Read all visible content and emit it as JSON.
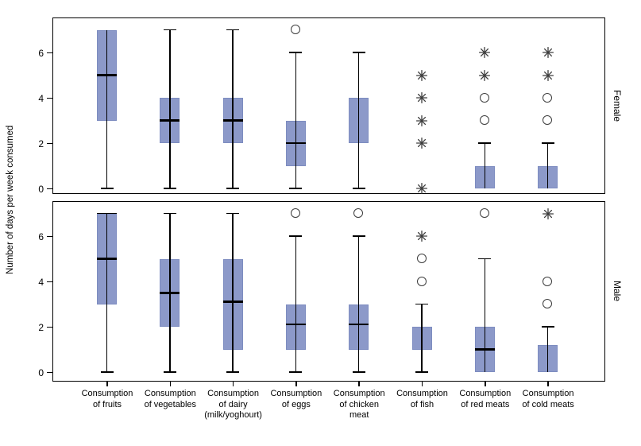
{
  "figure": {
    "ylabel": "Number of days per week consumed",
    "yticks": [
      0,
      2,
      4,
      6
    ],
    "colors": {
      "box_fill": "#8C99C9",
      "box_edge": "#7D8CC0",
      "line": "#000000",
      "outlier": "#3D3D3D"
    },
    "categories_lines": [
      [
        "Consumption",
        "of fruits"
      ],
      [
        "Consumption",
        "of vegetables"
      ],
      [
        "Consumption",
        "of dairy",
        "(milk/yoghourt)"
      ],
      [
        "Consumption",
        "of eggs"
      ],
      [
        "Consumption",
        "of chicken",
        "meat"
      ],
      [
        "Consumption",
        "of fish"
      ],
      [
        "Consumption",
        "of red meats"
      ],
      [
        "Consumption",
        "of cold meats"
      ]
    ]
  },
  "chart_data": {
    "type": "boxplot",
    "title": "",
    "xlabel": "",
    "ylabel": "Number of days per week consumed",
    "ylim": [
      -0.35,
      7.55
    ],
    "yticks": [
      0,
      2,
      4,
      6
    ],
    "grid": false,
    "panel_layout": "two stacked panels sharing x axis, panel label on right side",
    "categories": [
      "Consumption of fruits",
      "Consumption of vegetables",
      "Consumption of dairy (milk/yoghourt)",
      "Consumption of eggs",
      "Consumption of chicken meat",
      "Consumption of fish",
      "Consumption of red meats",
      "Consumption of cold meats"
    ],
    "panels": [
      {
        "name": "Female",
        "boxes": [
          {
            "lo": 0,
            "q1": 3,
            "med": 5,
            "q3": 7,
            "hi": 7,
            "caps": [
              0
            ],
            "circles": [],
            "stars": []
          },
          {
            "lo": 0,
            "q1": 2,
            "med": 3,
            "q3": 4,
            "hi": 7,
            "caps": [
              0,
              7
            ],
            "circles": [],
            "stars": []
          },
          {
            "lo": 0,
            "q1": 2,
            "med": 3,
            "q3": 4,
            "hi": 7,
            "caps": [
              0,
              7
            ],
            "circles": [],
            "stars": []
          },
          {
            "lo": 0,
            "q1": 1,
            "med": 2,
            "q3": 3,
            "hi": 6,
            "caps": [
              0,
              6
            ],
            "circles": [
              7
            ],
            "stars": []
          },
          {
            "lo": 0,
            "q1": 2,
            "med": null,
            "q3": 4,
            "hi": 6,
            "caps": [
              0,
              6
            ],
            "circles": [],
            "stars": []
          },
          {
            "lo": null,
            "q1": null,
            "med": null,
            "q3": null,
            "hi": null,
            "caps": [],
            "circles": [],
            "stars": [
              0,
              2,
              3,
              4,
              5
            ]
          },
          {
            "lo": 0,
            "q1": 0,
            "med": null,
            "q3": 1,
            "hi": 2,
            "caps": [
              2
            ],
            "circles": [
              3,
              4
            ],
            "stars": [
              5,
              6
            ]
          },
          {
            "lo": 0,
            "q1": 0,
            "med": null,
            "q3": 1,
            "hi": 2,
            "caps": [
              2
            ],
            "circles": [
              3,
              4
            ],
            "stars": [
              5,
              6
            ]
          }
        ]
      },
      {
        "name": "Male",
        "boxes": [
          {
            "lo": 0,
            "q1": 3,
            "med": 5,
            "q3": 7,
            "hi": 7,
            "caps": [
              0,
              7
            ],
            "circles": [],
            "stars": []
          },
          {
            "lo": 0,
            "q1": 2,
            "med": 3.5,
            "q3": 5,
            "hi": 7,
            "caps": [
              0,
              7
            ],
            "circles": [],
            "stars": []
          },
          {
            "lo": 0,
            "q1": 1,
            "med": 3.1,
            "q3": 5,
            "hi": 7,
            "caps": [
              0,
              7
            ],
            "circles": [],
            "stars": []
          },
          {
            "lo": 0,
            "q1": 1,
            "med": 2.1,
            "q3": 3,
            "hi": 6,
            "caps": [
              0,
              6
            ],
            "circles": [
              7
            ],
            "stars": []
          },
          {
            "lo": 0,
            "q1": 1,
            "med": 2.1,
            "q3": 3,
            "hi": 6,
            "caps": [
              0,
              6
            ],
            "circles": [
              7
            ],
            "stars": []
          },
          {
            "lo": 0,
            "q1": 1,
            "med": null,
            "q3": 2,
            "hi": 3,
            "caps": [
              0,
              3
            ],
            "circles": [
              4,
              5
            ],
            "stars": [
              6
            ]
          },
          {
            "lo": 0,
            "q1": 0,
            "med": 1,
            "q3": 2,
            "hi": 5,
            "caps": [
              5
            ],
            "circles": [
              7
            ],
            "stars": []
          },
          {
            "lo": 0,
            "q1": 0,
            "med": null,
            "q3": 1.2,
            "hi": 2,
            "caps": [
              2
            ],
            "circles": [
              3,
              4
            ],
            "stars": [
              7
            ]
          }
        ]
      }
    ]
  }
}
